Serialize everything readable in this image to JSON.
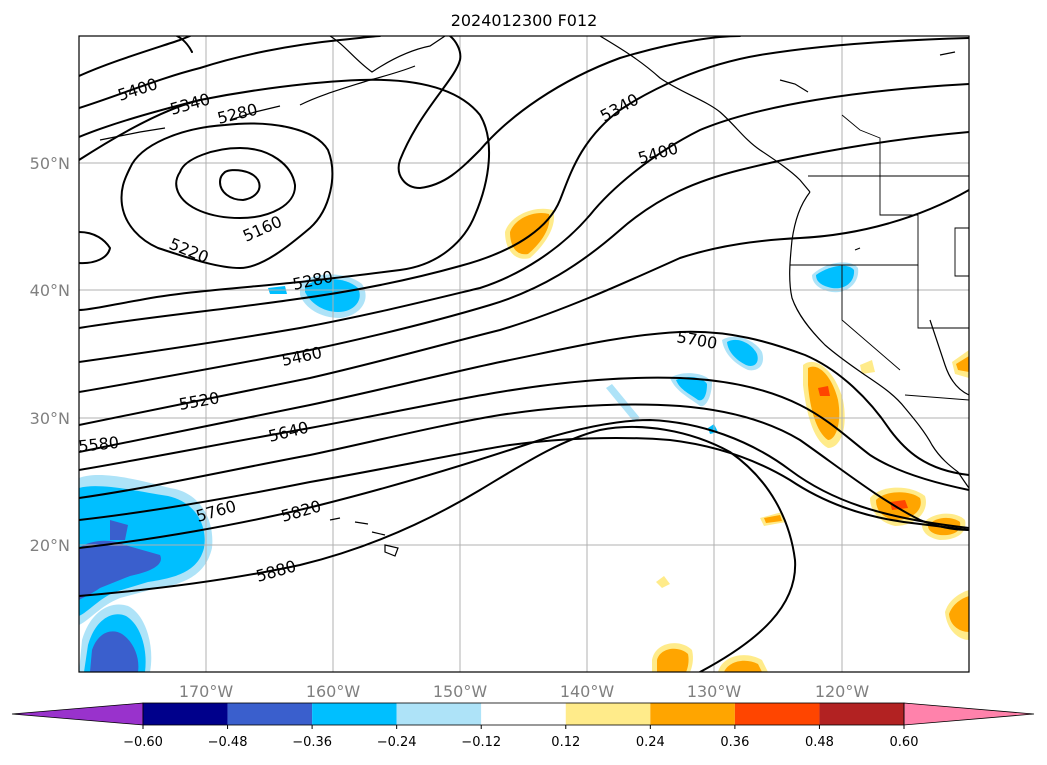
{
  "title": "2024012300 F012",
  "lat_labels": [
    "50°N",
    "40°N",
    "30°N",
    "20°N"
  ],
  "lon_labels": [
    "170°W",
    "160°W",
    "150°W",
    "140°W",
    "130°W",
    "120°W"
  ],
  "contour_labels": [
    "5400",
    "5340",
    "5280",
    "5160",
    "5220",
    "5280",
    "5340",
    "5400",
    "5460",
    "5520",
    "5580",
    "5640",
    "5700",
    "5760",
    "5820",
    "5880"
  ],
  "colorbar": {
    "ticks": [
      "−0.60",
      "−0.48",
      "−0.36",
      "−0.24",
      "−0.12",
      "0.12",
      "0.24",
      "0.36",
      "0.48",
      "0.60"
    ],
    "colors": [
      "#9932cc",
      "#00008b",
      "#3a5fcd",
      "#00bfff",
      "#aee3f8",
      "#ffffff",
      "#ffeb8a",
      "#ffa500",
      "#ff4500",
      "#b22222",
      "#ff82ab"
    ]
  },
  "colors": {
    "contour": "#000000",
    "grid": "#b0b0b0",
    "axis_label": "#808080"
  }
}
